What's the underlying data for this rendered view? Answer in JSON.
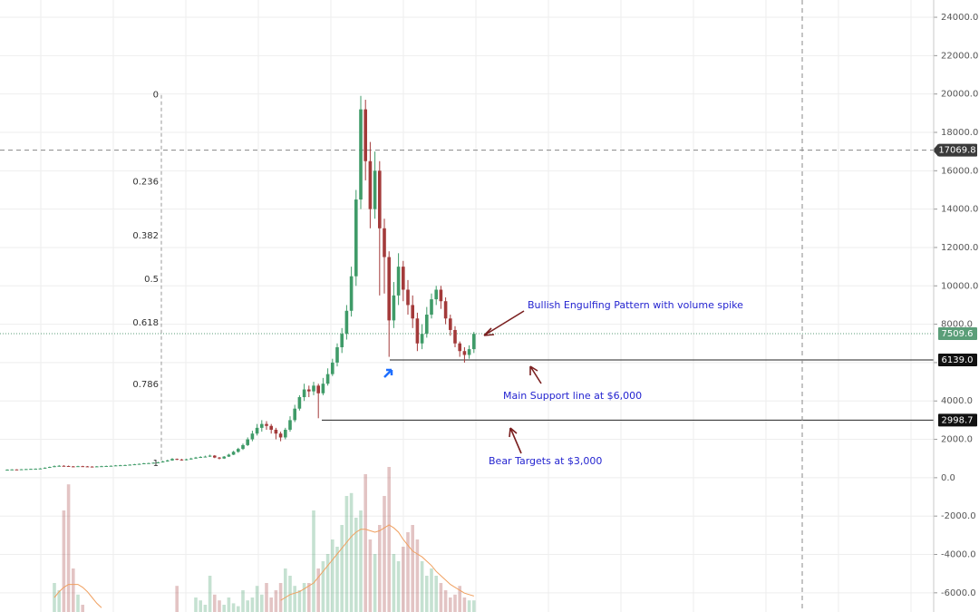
{
  "chart_data": {
    "type": "candlestick",
    "ylim": [
      -7000,
      24900
    ],
    "yticks": [
      {
        "value": -6000,
        "label": "-6000.0"
      },
      {
        "value": -4000,
        "label": "-4000.0"
      },
      {
        "value": -2000,
        "label": "-2000.0"
      },
      {
        "value": 0,
        "label": "0.0"
      },
      {
        "value": 2000,
        "label": "2000.0"
      },
      {
        "value": 4000,
        "label": "4000.0"
      },
      {
        "value": 6000,
        "label": "6000.0"
      },
      {
        "value": 8000,
        "label": "8000.0"
      },
      {
        "value": 10000,
        "label": "10000.0"
      },
      {
        "value": 12000,
        "label": "12000.0"
      },
      {
        "value": 14000,
        "label": "14000.0"
      },
      {
        "value": 16000,
        "label": "16000.0"
      },
      {
        "value": 18000,
        "label": "18000.0"
      },
      {
        "value": 20000,
        "label": "20000.0"
      },
      {
        "value": 22000,
        "label": "22000.0"
      },
      {
        "value": 24000,
        "label": "24000.0"
      }
    ],
    "grid": true,
    "up_color": "#3f9b68",
    "down_color": "#a33a3a",
    "ohlc": [
      [
        410,
        440,
        400,
        420
      ],
      [
        420,
        445,
        410,
        430
      ],
      [
        430,
        440,
        415,
        425
      ],
      [
        425,
        450,
        420,
        440
      ],
      [
        440,
        460,
        430,
        450
      ],
      [
        450,
        470,
        440,
        460
      ],
      [
        460,
        480,
        450,
        470
      ],
      [
        470,
        500,
        460,
        480
      ],
      [
        480,
        540,
        470,
        520
      ],
      [
        520,
        580,
        510,
        560
      ],
      [
        560,
        640,
        550,
        600
      ],
      [
        600,
        660,
        580,
        620
      ],
      [
        620,
        650,
        590,
        610
      ],
      [
        610,
        630,
        570,
        590
      ],
      [
        590,
        610,
        560,
        580
      ],
      [
        580,
        620,
        570,
        600
      ],
      [
        600,
        620,
        570,
        590
      ],
      [
        590,
        610,
        560,
        580
      ],
      [
        580,
        600,
        550,
        570
      ],
      [
        570,
        610,
        560,
        590
      ],
      [
        590,
        620,
        580,
        600
      ],
      [
        600,
        630,
        590,
        610
      ],
      [
        610,
        640,
        600,
        620
      ],
      [
        620,
        660,
        610,
        640
      ],
      [
        640,
        670,
        630,
        650
      ],
      [
        650,
        680,
        640,
        660
      ],
      [
        660,
        700,
        650,
        680
      ],
      [
        680,
        720,
        670,
        700
      ],
      [
        700,
        740,
        690,
        720
      ],
      [
        720,
        770,
        710,
        750
      ],
      [
        750,
        780,
        730,
        760
      ],
      [
        760,
        800,
        740,
        780
      ],
      [
        780,
        830,
        770,
        800
      ],
      [
        800,
        880,
        790,
        850
      ],
      [
        850,
        940,
        830,
        900
      ],
      [
        900,
        1020,
        880,
        980
      ],
      [
        980,
        1000,
        920,
        950
      ],
      [
        950,
        980,
        890,
        920
      ],
      [
        920,
        990,
        900,
        960
      ],
      [
        960,
        1040,
        940,
        1000
      ],
      [
        1000,
        1090,
        980,
        1050
      ],
      [
        1050,
        1120,
        1030,
        1080
      ],
      [
        1080,
        1150,
        1060,
        1100
      ],
      [
        1100,
        1200,
        1080,
        1150
      ],
      [
        1150,
        1180,
        1020,
        1050
      ],
      [
        1050,
        1080,
        960,
        1000
      ],
      [
        1000,
        1130,
        980,
        1100
      ],
      [
        1100,
        1250,
        1080,
        1200
      ],
      [
        1200,
        1400,
        1180,
        1350
      ],
      [
        1350,
        1560,
        1300,
        1500
      ],
      [
        1500,
        1780,
        1450,
        1700
      ],
      [
        1700,
        2100,
        1650,
        2000
      ],
      [
        2000,
        2450,
        1900,
        2300
      ],
      [
        2300,
        2800,
        2200,
        2600
      ],
      [
        2600,
        3000,
        2400,
        2800
      ],
      [
        2800,
        2950,
        2500,
        2700
      ],
      [
        2700,
        2800,
        2300,
        2500
      ],
      [
        2500,
        2600,
        2000,
        2300
      ],
      [
        2300,
        2400,
        1900,
        2100
      ],
      [
        2100,
        2600,
        2000,
        2500
      ],
      [
        2500,
        3200,
        2400,
        3000
      ],
      [
        3000,
        3800,
        2900,
        3600
      ],
      [
        3600,
        4300,
        3500,
        4200
      ],
      [
        4200,
        4900,
        4000,
        4600
      ],
      [
        4600,
        4800,
        4200,
        4500
      ],
      [
        4500,
        5000,
        4300,
        4800
      ],
      [
        4800,
        4900,
        3100,
        4400
      ],
      [
        4400,
        5200,
        4300,
        4900
      ],
      [
        4900,
        5700,
        4800,
        5400
      ],
      [
        5400,
        6200,
        5300,
        6000
      ],
      [
        6000,
        7000,
        5800,
        6800
      ],
      [
        6800,
        7800,
        6500,
        7500
      ],
      [
        7500,
        9000,
        7200,
        8700
      ],
      [
        8700,
        11000,
        8400,
        10500
      ],
      [
        10500,
        15000,
        10000,
        14500
      ],
      [
        14500,
        19900,
        14000,
        19200
      ],
      [
        19200,
        19700,
        15500,
        16500
      ],
      [
        16500,
        17500,
        13000,
        14000
      ],
      [
        14000,
        17000,
        13500,
        16000
      ],
      [
        16000,
        16500,
        9500,
        13000
      ],
      [
        13000,
        13500,
        9600,
        11500
      ],
      [
        11500,
        11800,
        6300,
        8200
      ],
      [
        8200,
        10200,
        7800,
        9500
      ],
      [
        9500,
        11700,
        9000,
        11000
      ],
      [
        11000,
        11300,
        9200,
        9800
      ],
      [
        9800,
        10300,
        8500,
        9000
      ],
      [
        9000,
        9500,
        7800,
        8300
      ],
      [
        8300,
        8600,
        6600,
        7000
      ],
      [
        7000,
        8000,
        6700,
        7500
      ],
      [
        7500,
        8900,
        7300,
        8500
      ],
      [
        8500,
        9600,
        8300,
        9300
      ],
      [
        9300,
        10000,
        9000,
        9800
      ],
      [
        9800,
        10000,
        8800,
        9200
      ],
      [
        9200,
        9400,
        8000,
        8300
      ],
      [
        8300,
        8500,
        7400,
        7700
      ],
      [
        7700,
        7900,
        6800,
        7000
      ],
      [
        7000,
        7100,
        6300,
        6600
      ],
      [
        6600,
        6800,
        6000,
        6400
      ],
      [
        6400,
        6900,
        6200,
        6700
      ],
      [
        6700,
        7600,
        6500,
        7500
      ]
    ],
    "volume_lim": [
      0,
      100
    ],
    "volume": [
      0,
      0,
      0,
      0,
      0,
      0,
      0,
      0,
      0,
      0,
      20,
      15,
      70,
      88,
      30,
      12,
      5,
      0,
      0,
      0,
      0,
      0,
      0,
      0,
      0,
      0,
      0,
      0,
      0,
      0,
      0,
      0,
      0,
      0,
      0,
      0,
      18,
      0,
      0,
      0,
      10,
      8,
      5,
      25,
      12,
      8,
      5,
      10,
      6,
      4,
      15,
      8,
      10,
      18,
      12,
      20,
      10,
      15,
      20,
      30,
      25,
      18,
      15,
      20,
      20,
      70,
      30,
      35,
      40,
      50,
      45,
      60,
      80,
      82,
      65,
      70,
      95,
      50,
      40,
      60,
      80,
      100,
      40,
      35,
      45,
      55,
      60,
      50,
      35,
      25,
      30,
      25,
      20,
      15,
      10,
      12,
      18,
      10,
      8,
      8
    ],
    "volume_ma": [
      null,
      null,
      null,
      null,
      null,
      null,
      null,
      null,
      null,
      null,
      10,
      14,
      17,
      19,
      19,
      19,
      17,
      14,
      10,
      6,
      3,
      null,
      null,
      null,
      null,
      null,
      null,
      null,
      null,
      null,
      null,
      null,
      null,
      null,
      null,
      null,
      null,
      null,
      null,
      null,
      null,
      null,
      null,
      null,
      null,
      null,
      null,
      null,
      null,
      null,
      null,
      null,
      null,
      null,
      null,
      null,
      null,
      null,
      8,
      10,
      12,
      13,
      14,
      16,
      18,
      20,
      24,
      28,
      32,
      36,
      40,
      44,
      48,
      52,
      55,
      57,
      57,
      56,
      55,
      56,
      58,
      60,
      58,
      55,
      50,
      46,
      42,
      40,
      38,
      35,
      32,
      28,
      25,
      22,
      19,
      17,
      15,
      13,
      12,
      11
    ],
    "volume_ma_color": "#f0a060",
    "fib_range": [
      19950,
      750
    ],
    "fib_levels": [
      0,
      0.236,
      0.382,
      0.5,
      0.618,
      0.786,
      1
    ],
    "price_markers": [
      {
        "value": 17069.8,
        "color": "#3a3a3a"
      },
      {
        "value": 7509.6,
        "color": "#5a9e78"
      },
      {
        "value": {
          "value": 6139,
          "label": "6139.0"
        },
        "color": "#111111"
      },
      {
        "value": 2998.7,
        "color": "#111111"
      }
    ],
    "annotations": [
      "Bullish Engulfing Pattern with volume spike",
      "Main Support line at $6,000",
      "Bear Targets at $3,000"
    ]
  }
}
